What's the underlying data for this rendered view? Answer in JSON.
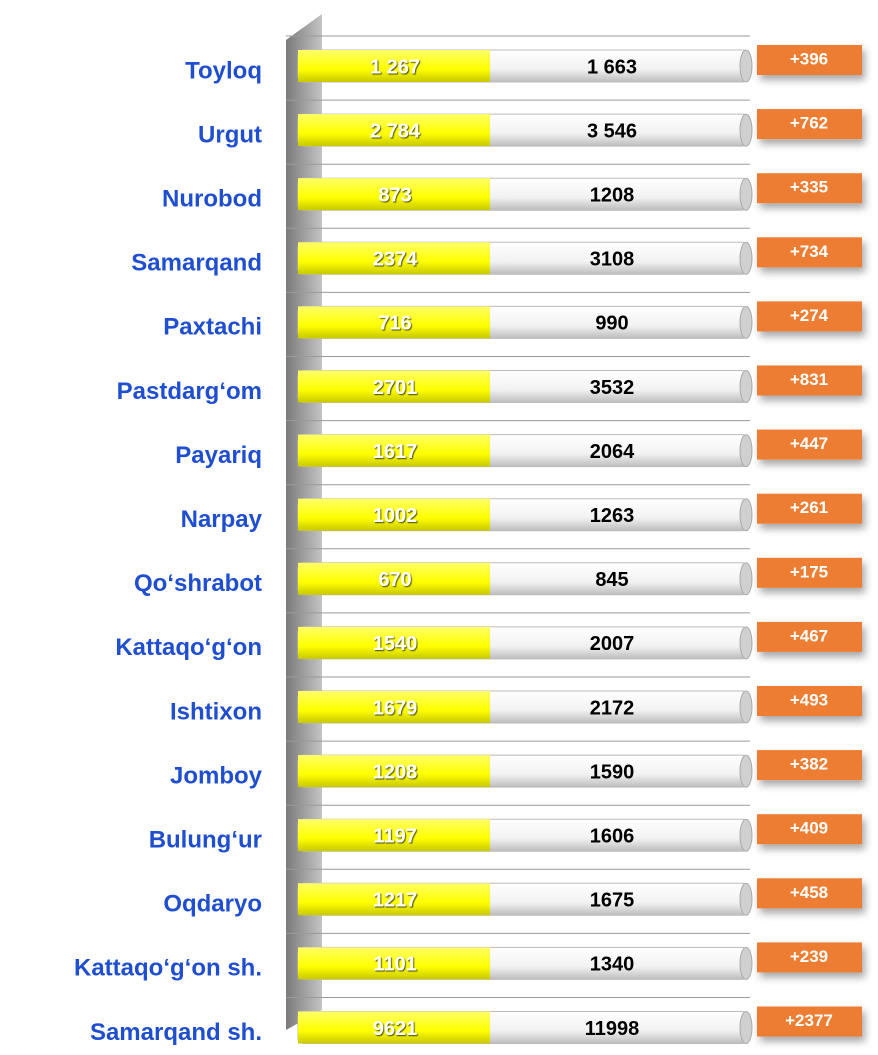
{
  "table": {
    "rows": [
      [
        "Toyloq",
        "1 267",
        "1 663",
        "+396"
      ],
      [
        "Urgut",
        "2 784",
        "3 546",
        "+762"
      ],
      [
        "Nurobod",
        "873",
        "1208",
        "+335"
      ],
      [
        "Samarqand",
        "2374",
        "3108",
        "+734"
      ],
      [
        "Paxtachi",
        "716",
        "990",
        "+274"
      ],
      [
        "Pastdarg‘om",
        "2701",
        "3532",
        "+831"
      ],
      [
        "Payariq",
        "1617",
        "2064",
        "+447"
      ],
      [
        "Narpay",
        "1002",
        "1263",
        "+261"
      ],
      [
        "Qo‘shrabot",
        "670",
        "845",
        "+175"
      ],
      [
        "Kattaqo‘g‘on",
        "1540",
        "2007",
        "+467"
      ],
      [
        "Ishtixon",
        "1679",
        "2172",
        "+493"
      ],
      [
        "Jomboy",
        "1208",
        "1590",
        "+382"
      ],
      [
        "Bulung‘ur",
        "1197",
        "1606",
        "+409"
      ],
      [
        "Oqdaryo",
        "1217",
        "1675",
        "+458"
      ],
      [
        "Kattaqo‘g‘on sh.",
        "1101",
        "1340",
        "+239"
      ],
      [
        "Samarqand sh.",
        "9621",
        "11998",
        "+2377"
      ]
    ]
  }
}
